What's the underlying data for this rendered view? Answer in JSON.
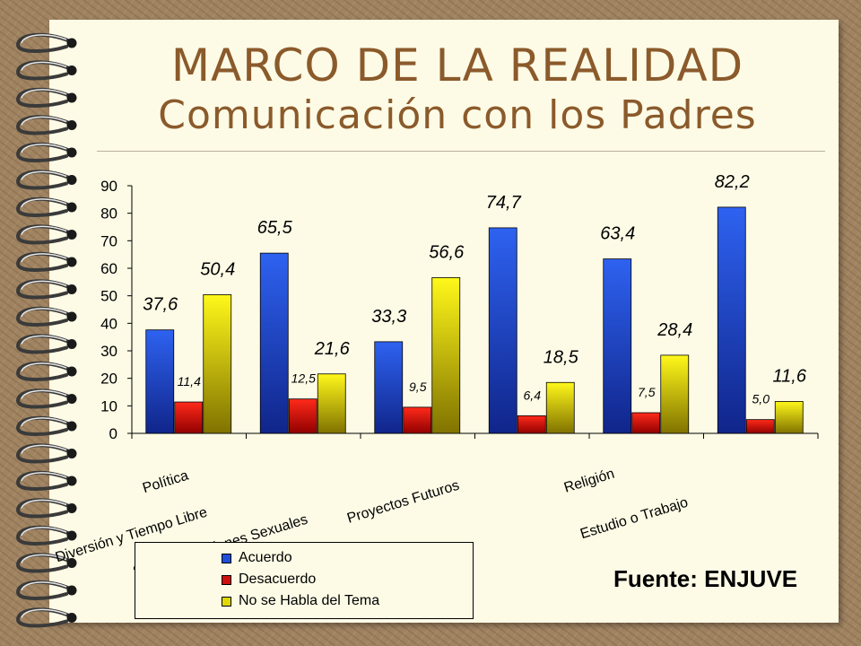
{
  "title": {
    "line1": "MARCO DE LA REALIDAD",
    "line2": "Comunicación con los Padres"
  },
  "source": "Fuente: ENJUVE",
  "colors": {
    "acuerdo": "#1f4fd9",
    "desacuerdo": "#d01010",
    "no_habla": "#e0d800",
    "title": "#8b5a2b"
  },
  "icons": [
    "spiral-binding-icon"
  ],
  "chart_data": {
    "type": "bar",
    "categories": [
      "Política",
      "Diversión y Tiempo Libre",
      "Sexo y Relaciones Sexuales",
      "Proyectos Futuros",
      "Religión",
      "Estudio o Trabajo"
    ],
    "series": [
      {
        "name": "Acuerdo",
        "values": [
          37.6,
          65.5,
          33.3,
          74.7,
          63.4,
          82.2
        ],
        "labels": [
          "37,6",
          "65,5",
          "33,3",
          "74,7",
          "63,4",
          "82,2"
        ]
      },
      {
        "name": "Desacuerdo",
        "values": [
          11.4,
          12.5,
          9.5,
          6.4,
          7.5,
          5.0
        ],
        "labels": [
          "11,4",
          "12,5",
          "9,5",
          "6,4",
          "7,5",
          "5,0"
        ]
      },
      {
        "name": "No se Habla del Tema",
        "values": [
          50.4,
          21.6,
          56.6,
          18.5,
          28.4,
          11.6
        ],
        "labels": [
          "50,4",
          "21,6",
          "56,6",
          "18,5",
          "28,4",
          "11,6"
        ]
      }
    ],
    "ylim": [
      0,
      90
    ],
    "yticks": [
      0,
      10,
      20,
      30,
      40,
      50,
      60,
      70,
      80,
      90
    ],
    "grid": false,
    "legend_position": "bottom-left"
  }
}
